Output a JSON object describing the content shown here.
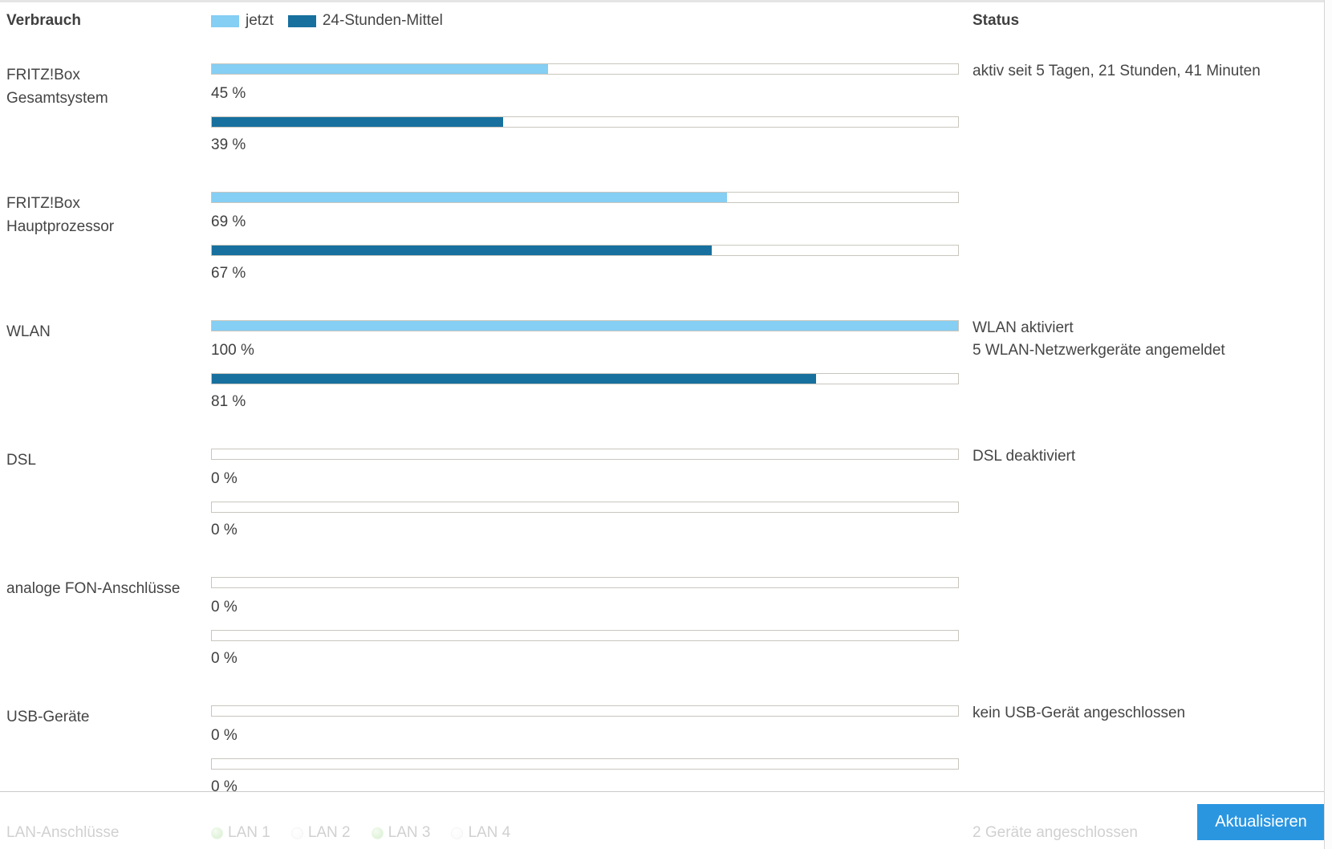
{
  "header": {
    "usage_label": "Verbrauch",
    "status_label": "Status",
    "legend": [
      {
        "label": "jetzt",
        "color": "#85cef4"
      },
      {
        "label": "24-Stunden-Mittel",
        "color": "#17709e"
      }
    ]
  },
  "colors": {
    "bar_now": "#85cef4",
    "bar_avg": "#17709e",
    "bar_border": "#c8c6be",
    "button_blue": "#2b96e0",
    "led_on_green": "#8ed077",
    "led_off_gray": "#e9e9e9"
  },
  "rows": [
    {
      "label_lines": [
        "FRITZ!Box",
        "Gesamtsystem"
      ],
      "now_value": 45,
      "now_text": "45 %",
      "avg_value": 39,
      "avg_text": "39 %",
      "status_lines": [
        "aktiv seit 5 Tagen, 21 Stunden, 41 Minuten"
      ]
    },
    {
      "label_lines": [
        "FRITZ!Box",
        "Hauptprozessor"
      ],
      "now_value": 69,
      "now_text": "69 %",
      "avg_value": 67,
      "avg_text": "67 %",
      "status_lines": []
    },
    {
      "label_lines": [
        "WLAN"
      ],
      "now_value": 100,
      "now_text": "100 %",
      "avg_value": 81,
      "avg_text": "81 %",
      "status_lines": [
        "WLAN aktiviert",
        "5 WLAN-Netzwerkgeräte angemeldet"
      ]
    },
    {
      "label_lines": [
        "DSL"
      ],
      "now_value": 0,
      "now_text": "0 %",
      "avg_value": 0,
      "avg_text": "0 %",
      "status_lines": [
        "DSL deaktiviert"
      ]
    },
    {
      "label_lines": [
        "analoge FON-Anschlüsse"
      ],
      "now_value": 0,
      "now_text": "0 %",
      "avg_value": 0,
      "avg_text": "0 %",
      "status_lines": []
    },
    {
      "label_lines": [
        "USB-Geräte"
      ],
      "now_value": 0,
      "now_text": "0 %",
      "avg_value": 0,
      "avg_text": "0 %",
      "status_lines": [
        "kein USB-Gerät angeschlossen"
      ]
    }
  ],
  "lan": {
    "label": "LAN-Anschlüsse",
    "ports": [
      {
        "label": "LAN 1",
        "on": true
      },
      {
        "label": "LAN 2",
        "on": false
      },
      {
        "label": "LAN 3",
        "on": true
      },
      {
        "label": "LAN 4",
        "on": false
      }
    ],
    "status": "2 Geräte angeschlossen"
  },
  "footer": {
    "refresh_label": "Aktualisieren"
  }
}
